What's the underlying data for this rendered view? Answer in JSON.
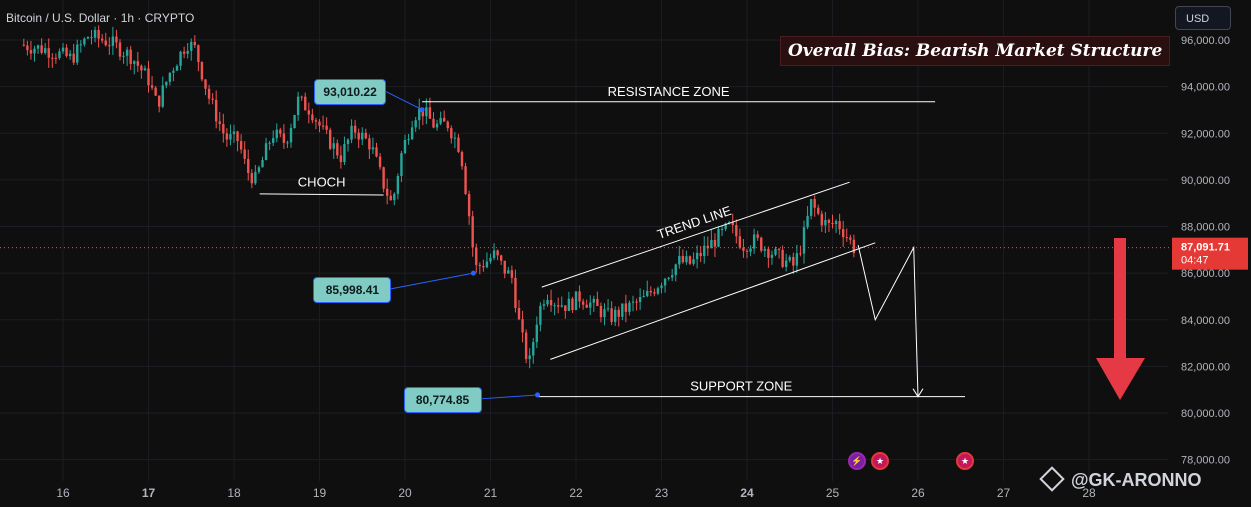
{
  "header": {
    "symbol_line": "Bitcoin / U.S. Dollar · 1h · CRYPTO"
  },
  "currency_button": "USD",
  "bias_label": "Overall Bias: Bearish Market Structure",
  "watermark": "@GK-ARONNO",
  "icons": {
    "watermark": "diamond-logo-icon",
    "event1": "flash-event-icon",
    "event2": "us-flag-icon",
    "event3": "us-flag-icon"
  },
  "colors": {
    "background": "#0f0f0f",
    "up": "#26a69a",
    "down": "#ef5350",
    "badge": "#80cbc4",
    "price_tag": "#e53935",
    "arrow": "#e53946",
    "annotation": "#ffffff",
    "connector": "#2962ff"
  },
  "chart_data": {
    "type": "candlestick",
    "symbol": "Bitcoin / U.S. Dollar",
    "timeframe": "1h",
    "x_ticks": [
      "16",
      "17",
      "18",
      "19",
      "20",
      "21",
      "22",
      "23",
      "24",
      "25",
      "26",
      "27",
      "28"
    ],
    "y_ticks": [
      "78,000.00",
      "80,000.00",
      "82,000.00",
      "84,000.00",
      "86,000.00",
      "88,000.00",
      "90,000.00",
      "92,000.00",
      "94,000.00",
      "96,000.00"
    ],
    "ylim": [
      77600,
      97000
    ],
    "xlim": [
      15.55,
      28.5
    ],
    "current_price": {
      "value": 87091.71,
      "label": "87,091.71",
      "countdown": "04:47"
    },
    "price_path": [
      [
        15.5,
        95800
      ],
      [
        15.8,
        95600
      ],
      [
        16.1,
        95200
      ],
      [
        16.3,
        96200
      ],
      [
        16.55,
        95900
      ],
      [
        16.8,
        95300
      ],
      [
        17.0,
        94300
      ],
      [
        17.1,
        93200
      ],
      [
        17.25,
        94600
      ],
      [
        17.45,
        95900
      ],
      [
        17.55,
        95600
      ],
      [
        17.7,
        93600
      ],
      [
        17.9,
        91800
      ],
      [
        18.05,
        91700
      ],
      [
        18.15,
        90400
      ],
      [
        18.25,
        90000
      ],
      [
        18.45,
        92000
      ],
      [
        18.6,
        91600
      ],
      [
        18.75,
        93400
      ],
      [
        18.9,
        93000
      ],
      [
        19.05,
        92000
      ],
      [
        19.25,
        91000
      ],
      [
        19.4,
        92200
      ],
      [
        19.6,
        91500
      ],
      [
        19.75,
        89800
      ],
      [
        19.85,
        88900
      ],
      [
        19.95,
        91000
      ],
      [
        20.1,
        92800
      ],
      [
        20.2,
        93000
      ],
      [
        20.35,
        92300
      ],
      [
        20.5,
        92400
      ],
      [
        20.65,
        91300
      ],
      [
        20.75,
        88500
      ],
      [
        20.82,
        86200
      ],
      [
        20.95,
        86500
      ],
      [
        21.05,
        86800
      ],
      [
        21.15,
        86200
      ],
      [
        21.25,
        85800
      ],
      [
        21.35,
        83500
      ],
      [
        21.45,
        82000
      ],
      [
        21.55,
        84200
      ],
      [
        21.65,
        85200
      ],
      [
        21.75,
        84800
      ],
      [
        21.9,
        84600
      ],
      [
        22.05,
        85000
      ],
      [
        22.2,
        84600
      ],
      [
        22.4,
        84100
      ],
      [
        22.6,
        84500
      ],
      [
        22.8,
        84900
      ],
      [
        23.0,
        85700
      ],
      [
        23.2,
        86500
      ],
      [
        23.35,
        86400
      ],
      [
        23.5,
        87000
      ],
      [
        23.65,
        87500
      ],
      [
        23.8,
        88000
      ],
      [
        23.95,
        87200
      ],
      [
        24.1,
        87400
      ],
      [
        24.25,
        87000
      ],
      [
        24.4,
        86600
      ],
      [
        24.55,
        86300
      ],
      [
        24.65,
        87400
      ],
      [
        24.75,
        89000
      ],
      [
        24.85,
        88400
      ],
      [
        24.95,
        88000
      ],
      [
        25.05,
        88200
      ],
      [
        25.15,
        87700
      ],
      [
        25.25,
        87092
      ]
    ],
    "markers": [
      {
        "label": "93,010.22",
        "x": 20.2,
        "y": 93010.22,
        "badge_side": "left-above"
      },
      {
        "label": "85,998.41",
        "x": 20.8,
        "y": 85998.41,
        "badge_side": "left-below"
      },
      {
        "label": "80,774.85",
        "x": 21.55,
        "y": 80774.85,
        "badge_side": "left"
      }
    ],
    "annotations": [
      {
        "kind": "hline",
        "label": "RESISTANCE ZONE",
        "y": 93350,
        "x_start": 20.2,
        "x_end": 26.2
      },
      {
        "kind": "hline",
        "label": "SUPPORT ZONE",
        "y": 80700,
        "x_start": 21.55,
        "x_end": 26.55
      },
      {
        "kind": "segment",
        "label": "CHOCH",
        "x_start": 18.3,
        "x_end": 19.75,
        "y_start": 89400,
        "y_end": 89350
      },
      {
        "kind": "segment",
        "label": "TREND LINE",
        "x_start": 21.6,
        "x_end": 25.2,
        "y_start": 85400,
        "y_end": 89900
      },
      {
        "kind": "segment",
        "label": "",
        "x_start": 21.7,
        "x_end": 25.5,
        "y_start": 82300,
        "y_end": 87300
      },
      {
        "kind": "projection",
        "label": "",
        "points": [
          [
            25.3,
            87200
          ],
          [
            25.5,
            84000
          ],
          [
            25.95,
            87100
          ],
          [
            26.0,
            80700
          ]
        ]
      }
    ]
  }
}
